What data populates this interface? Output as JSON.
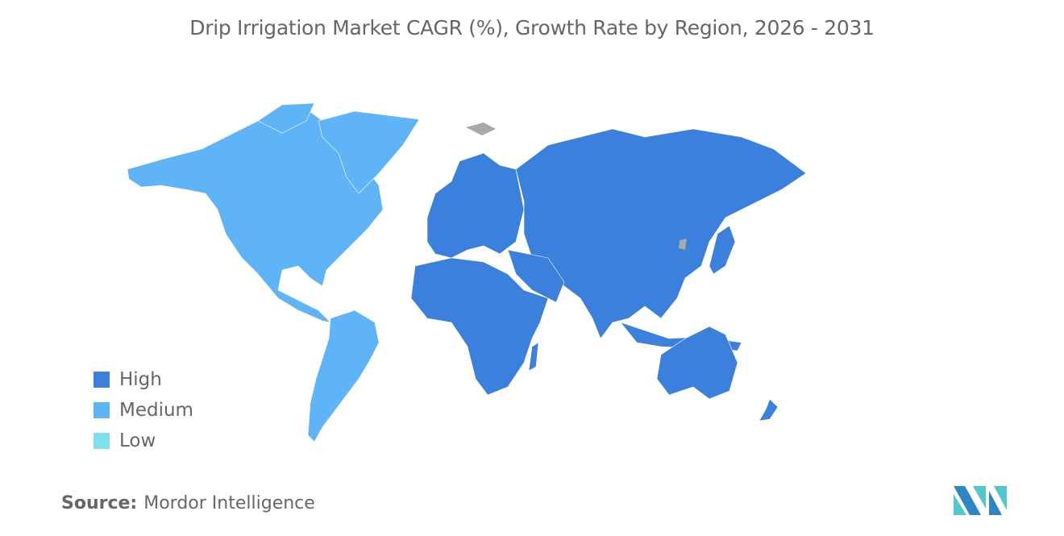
{
  "title": "Drip Irrigation Market CAGR (%), Growth Rate by Region, 2026 - 2031",
  "legend": [
    {
      "label": "High",
      "color": "#3b80dc"
    },
    {
      "label": "Medium",
      "color": "#5fb3f7"
    },
    {
      "label": "Low",
      "color": "#7fe0ea"
    }
  ],
  "regions": {
    "North America": "Medium",
    "South America": "Medium",
    "Europe": "High",
    "Asia-Pacific": "High",
    "Middle East and Africa": "High"
  },
  "no_data_color": "#a9a9a9",
  "source": {
    "label": "Source:",
    "value": "Mordor Intelligence"
  }
}
